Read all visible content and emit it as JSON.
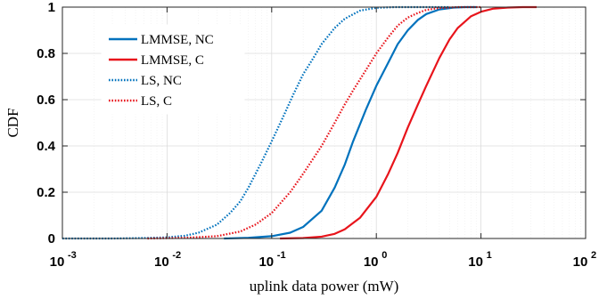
{
  "chart_data": {
    "type": "line",
    "xlabel": "uplink data power (mW)",
    "ylabel": "CDF",
    "xscale": "log",
    "xlim": [
      0.001,
      100
    ],
    "ylim": [
      0,
      1
    ],
    "x_ticks": [
      {
        "base": "10",
        "exp": "-3",
        "value": 0.001
      },
      {
        "base": "10",
        "exp": "-2",
        "value": 0.01
      },
      {
        "base": "10",
        "exp": "-1",
        "value": 0.1
      },
      {
        "base": "10",
        "exp": "0",
        "value": 1
      },
      {
        "base": "10",
        "exp": "1",
        "value": 10
      },
      {
        "base": "10",
        "exp": "2",
        "value": 100
      }
    ],
    "y_ticks": [
      {
        "label": "0",
        "value": 0
      },
      {
        "label": "0.2",
        "value": 0.2
      },
      {
        "label": "0.4",
        "value": 0.4
      },
      {
        "label": "0.6",
        "value": 0.6
      },
      {
        "label": "0.8",
        "value": 0.8
      },
      {
        "label": "1",
        "value": 1
      }
    ],
    "grid": true,
    "legend_position": "top-left",
    "series": [
      {
        "name": "LMMSE, NC",
        "color": "#0072BD",
        "style": "solid",
        "points": [
          [
            0.035,
            0
          ],
          [
            0.06,
            0.003
          ],
          [
            0.1,
            0.01
          ],
          [
            0.15,
            0.025
          ],
          [
            0.2,
            0.05
          ],
          [
            0.3,
            0.12
          ],
          [
            0.4,
            0.22
          ],
          [
            0.5,
            0.32
          ],
          [
            0.6,
            0.42
          ],
          [
            0.8,
            0.56
          ],
          [
            1.0,
            0.66
          ],
          [
            1.3,
            0.76
          ],
          [
            1.6,
            0.84
          ],
          [
            2.0,
            0.9
          ],
          [
            2.5,
            0.945
          ],
          [
            3.0,
            0.97
          ],
          [
            4.0,
            0.99
          ],
          [
            5.5,
            0.998
          ],
          [
            7.0,
            1.0
          ],
          [
            9.0,
            1.0
          ]
        ]
      },
      {
        "name": "LMMSE, C",
        "color": "#E8141B",
        "style": "solid",
        "points": [
          [
            0.12,
            0
          ],
          [
            0.2,
            0.002
          ],
          [
            0.3,
            0.008
          ],
          [
            0.4,
            0.02
          ],
          [
            0.5,
            0.04
          ],
          [
            0.7,
            0.09
          ],
          [
            1.0,
            0.18
          ],
          [
            1.3,
            0.28
          ],
          [
            1.6,
            0.37
          ],
          [
            2.0,
            0.48
          ],
          [
            2.5,
            0.58
          ],
          [
            3.0,
            0.66
          ],
          [
            4.0,
            0.78
          ],
          [
            5.0,
            0.86
          ],
          [
            6.0,
            0.91
          ],
          [
            8.0,
            0.96
          ],
          [
            10.0,
            0.98
          ],
          [
            13.0,
            0.993
          ],
          [
            18.0,
            0.998
          ],
          [
            25.0,
            1.0
          ],
          [
            34.0,
            1.0
          ]
        ]
      },
      {
        "name": "LS, NC",
        "color": "#0072BD",
        "style": "dotted",
        "points": [
          [
            0.001,
            0
          ],
          [
            0.003,
            0
          ],
          [
            0.006,
            0.002
          ],
          [
            0.01,
            0.005
          ],
          [
            0.015,
            0.012
          ],
          [
            0.02,
            0.025
          ],
          [
            0.03,
            0.06
          ],
          [
            0.04,
            0.11
          ],
          [
            0.05,
            0.16
          ],
          [
            0.06,
            0.22
          ],
          [
            0.08,
            0.33
          ],
          [
            0.1,
            0.42
          ],
          [
            0.13,
            0.53
          ],
          [
            0.16,
            0.62
          ],
          [
            0.2,
            0.71
          ],
          [
            0.25,
            0.78
          ],
          [
            0.3,
            0.84
          ],
          [
            0.4,
            0.91
          ],
          [
            0.5,
            0.95
          ],
          [
            0.7,
            0.985
          ],
          [
            1.0,
            0.997
          ],
          [
            1.5,
            1.0
          ],
          [
            3.0,
            1.0
          ],
          [
            5.0,
            1.0
          ]
        ]
      },
      {
        "name": "LS, C",
        "color": "#E8141B",
        "style": "dotted",
        "points": [
          [
            0.0065,
            0
          ],
          [
            0.015,
            0.003
          ],
          [
            0.03,
            0.01
          ],
          [
            0.05,
            0.03
          ],
          [
            0.07,
            0.06
          ],
          [
            0.1,
            0.11
          ],
          [
            0.15,
            0.2
          ],
          [
            0.2,
            0.28
          ],
          [
            0.3,
            0.4
          ],
          [
            0.4,
            0.5
          ],
          [
            0.5,
            0.58
          ],
          [
            0.6,
            0.64
          ],
          [
            0.8,
            0.73
          ],
          [
            1.0,
            0.8
          ],
          [
            1.3,
            0.87
          ],
          [
            1.6,
            0.92
          ],
          [
            2.0,
            0.955
          ],
          [
            2.5,
            0.975
          ],
          [
            3.0,
            0.988
          ],
          [
            4.0,
            0.996
          ],
          [
            6.0,
            1.0
          ],
          [
            10.0,
            1.0
          ]
        ]
      }
    ]
  }
}
